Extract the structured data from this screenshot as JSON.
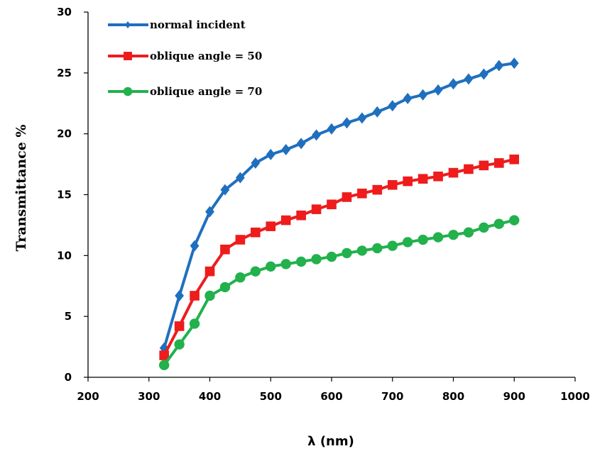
{
  "chart_data": {
    "type": "line",
    "xlabel": "λ (nm)",
    "ylabel": "Transmittance %",
    "xlim": [
      200,
      1000
    ],
    "ylim": [
      0,
      30
    ],
    "xticks": [
      200,
      300,
      400,
      500,
      600,
      700,
      800,
      900,
      1000
    ],
    "yticks": [
      0,
      5,
      10,
      15,
      20,
      25,
      30
    ],
    "grid": false,
    "legend_position": "top-left",
    "x": [
      325,
      350,
      375,
      400,
      425,
      450,
      475,
      500,
      525,
      550,
      575,
      600,
      625,
      650,
      675,
      700,
      725,
      750,
      775,
      800,
      825,
      850,
      875,
      900
    ],
    "series": [
      {
        "name": "normal incident",
        "color": "#1f6fbf",
        "marker": "diamond",
        "values": [
          2.4,
          6.7,
          10.8,
          13.6,
          15.4,
          16.4,
          17.6,
          18.3,
          18.7,
          19.2,
          19.9,
          20.4,
          20.9,
          21.3,
          21.8,
          22.3,
          22.9,
          23.2,
          23.6,
          24.1,
          24.5,
          24.9,
          25.6,
          25.8
        ]
      },
      {
        "name": "oblique angle = 50",
        "color": "#ee1c1c",
        "marker": "square",
        "values": [
          1.8,
          4.2,
          6.7,
          8.7,
          10.5,
          11.3,
          11.9,
          12.4,
          12.9,
          13.3,
          13.8,
          14.2,
          14.8,
          15.1,
          15.4,
          15.8,
          16.1,
          16.3,
          16.5,
          16.8,
          17.1,
          17.4,
          17.6,
          17.9
        ]
      },
      {
        "name": "oblique angle = 70",
        "color": "#22b14c",
        "marker": "circle",
        "values": [
          1.0,
          2.7,
          4.4,
          6.7,
          7.4,
          8.2,
          8.7,
          9.1,
          9.3,
          9.5,
          9.7,
          9.9,
          10.2,
          10.4,
          10.6,
          10.8,
          11.1,
          11.3,
          11.5,
          11.7,
          11.9,
          12.3,
          12.6,
          12.9
        ]
      }
    ]
  }
}
